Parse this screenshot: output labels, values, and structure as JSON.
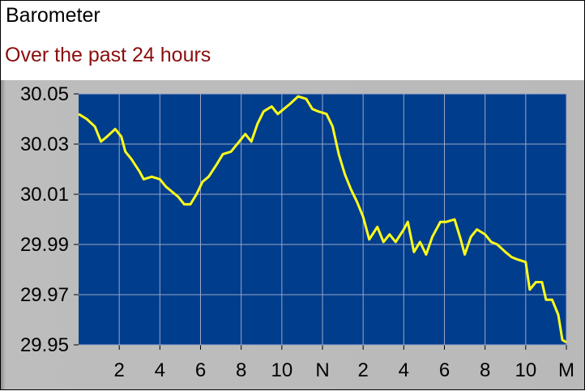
{
  "header": {
    "title": "Barometer",
    "subtitle": "Over the past 24 hours"
  },
  "colors": {
    "plot_background": "#003d8c",
    "line": "#ffff1a",
    "grid": "#9aa6c8",
    "subtitle": "#8b0d0d"
  },
  "chart_data": {
    "type": "line",
    "title": "Barometer",
    "subtitle": "Over the past 24 hours",
    "x_ticks": [
      "2",
      "4",
      "6",
      "8",
      "10",
      "N",
      "2",
      "4",
      "6",
      "8",
      "10",
      "M"
    ],
    "y_ticks": [
      "30.05",
      "30.03",
      "30.01",
      "29.99",
      "29.97",
      "29.95"
    ],
    "xlim": [
      0,
      24
    ],
    "ylim": [
      29.95,
      30.05
    ],
    "grid": true,
    "series": [
      {
        "values": [
          [
            0.0,
            30.042
          ],
          [
            0.4,
            30.04
          ],
          [
            0.8,
            30.037
          ],
          [
            1.1,
            30.031
          ],
          [
            1.4,
            30.033
          ],
          [
            1.8,
            30.036
          ],
          [
            2.1,
            30.033
          ],
          [
            2.3,
            30.027
          ],
          [
            2.6,
            30.024
          ],
          [
            3.0,
            30.019
          ],
          [
            3.2,
            30.016
          ],
          [
            3.6,
            30.017
          ],
          [
            4.0,
            30.016
          ],
          [
            4.3,
            30.013
          ],
          [
            4.6,
            30.011
          ],
          [
            4.9,
            30.009
          ],
          [
            5.2,
            30.006
          ],
          [
            5.5,
            30.006
          ],
          [
            5.8,
            30.01
          ],
          [
            6.1,
            30.015
          ],
          [
            6.4,
            30.017
          ],
          [
            6.8,
            30.022
          ],
          [
            7.1,
            30.026
          ],
          [
            7.5,
            30.027
          ],
          [
            7.9,
            30.031
          ],
          [
            8.2,
            30.034
          ],
          [
            8.5,
            30.031
          ],
          [
            8.8,
            30.038
          ],
          [
            9.1,
            30.043
          ],
          [
            9.5,
            30.045
          ],
          [
            9.8,
            30.042
          ],
          [
            10.1,
            30.044
          ],
          [
            10.4,
            30.046
          ],
          [
            10.8,
            30.049
          ],
          [
            11.2,
            30.048
          ],
          [
            11.5,
            30.044
          ],
          [
            11.8,
            30.043
          ],
          [
            12.2,
            30.042
          ],
          [
            12.5,
            30.037
          ],
          [
            12.8,
            30.026
          ],
          [
            13.1,
            30.018
          ],
          [
            13.4,
            30.012
          ],
          [
            13.7,
            30.007
          ],
          [
            14.0,
            30.001
          ],
          [
            14.3,
            29.992
          ],
          [
            14.7,
            29.997
          ],
          [
            15.0,
            29.991
          ],
          [
            15.3,
            29.994
          ],
          [
            15.6,
            29.991
          ],
          [
            16.0,
            29.996
          ],
          [
            16.2,
            29.999
          ],
          [
            16.5,
            29.987
          ],
          [
            16.8,
            29.991
          ],
          [
            17.1,
            29.986
          ],
          [
            17.4,
            29.993
          ],
          [
            17.8,
            29.999
          ],
          [
            18.1,
            29.999
          ],
          [
            18.5,
            30.0
          ],
          [
            18.8,
            29.992
          ],
          [
            19.0,
            29.986
          ],
          [
            19.3,
            29.993
          ],
          [
            19.6,
            29.996
          ],
          [
            20.0,
            29.994
          ],
          [
            20.3,
            29.991
          ],
          [
            20.6,
            29.99
          ],
          [
            21.0,
            29.987
          ],
          [
            21.3,
            29.985
          ],
          [
            21.6,
            29.984
          ],
          [
            22.0,
            29.983
          ],
          [
            22.2,
            29.972
          ],
          [
            22.5,
            29.975
          ],
          [
            22.8,
            29.975
          ],
          [
            23.0,
            29.968
          ],
          [
            23.3,
            29.968
          ],
          [
            23.6,
            29.962
          ],
          [
            23.8,
            29.952
          ],
          [
            24.0,
            29.951
          ]
        ]
      }
    ]
  }
}
